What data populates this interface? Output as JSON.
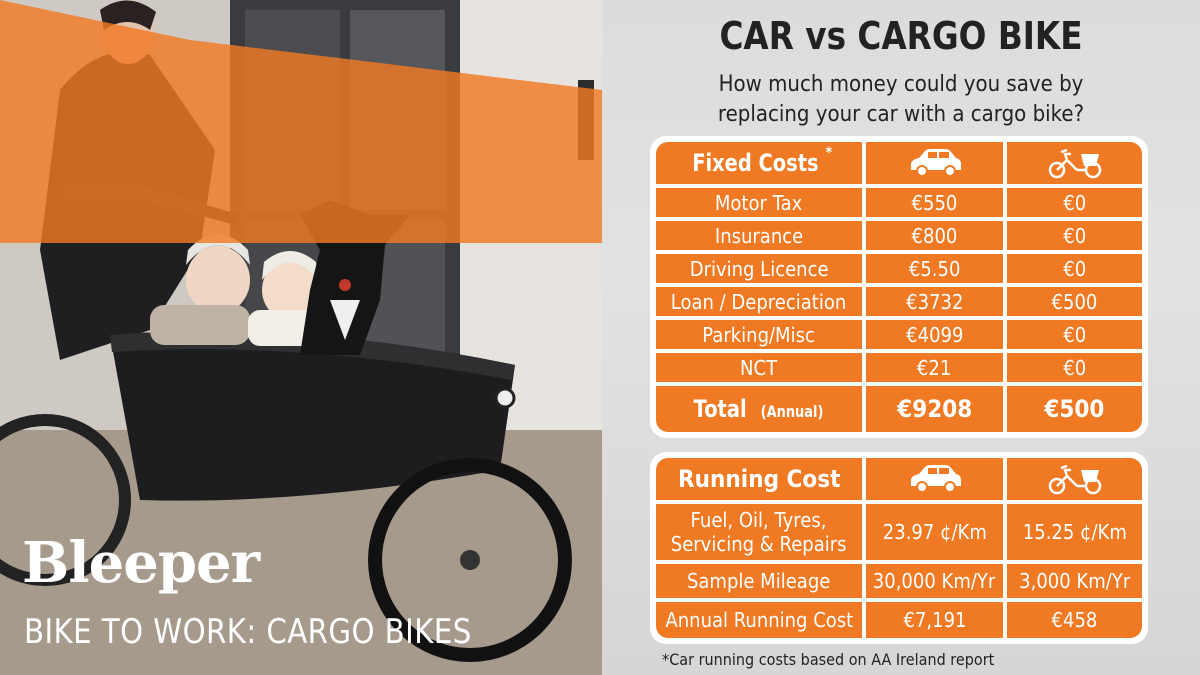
{
  "brand": {
    "name": "Bleeper",
    "tagline": "BIKE TO WORK: CARGO BIKES"
  },
  "header": {
    "title": "CAR vs CARGO BIKE",
    "subtitle_line1": "How much money could you save by",
    "subtitle_line2": "replacing your car with a cargo bike?"
  },
  "fixed_costs": {
    "header_label": "Fixed Costs",
    "header_marker": "*",
    "col_car_icon": "car-icon",
    "col_bike_icon": "cargo-bike-icon",
    "rows": [
      {
        "label": "Motor Tax",
        "car": "€550",
        "bike": "€0"
      },
      {
        "label": "Insurance",
        "car": "€800",
        "bike": "€0"
      },
      {
        "label": "Driving Licence",
        "car": "€5.50",
        "bike": "€0"
      },
      {
        "label": "Loan / Depreciation",
        "car": "€3732",
        "bike": "€500"
      },
      {
        "label": "Parking/Misc",
        "car": "€4099",
        "bike": "€0"
      },
      {
        "label": "NCT",
        "car": "€21",
        "bike": "€0"
      }
    ],
    "total": {
      "label": "Total",
      "qualifier": "(Annual)",
      "car": "€9208",
      "bike": "€500"
    }
  },
  "running_costs": {
    "header_label": "Running Cost",
    "rows": [
      {
        "label_line1": "Fuel, Oil, Tyres,",
        "label_line2": "Servicing & Repairs",
        "car": "23.97 ¢/Km",
        "bike": "15.25 ¢/Km"
      },
      {
        "label": "Sample Mileage",
        "car": "30,000 Km/Yr",
        "bike": "3,000 Km/Yr"
      },
      {
        "label": "Annual Running Cost",
        "car": "€7,191",
        "bike": "€458"
      }
    ]
  },
  "footnote": "*Car running costs based on AA Ireland report",
  "colors": {
    "accent_orange": "#f07a24",
    "table_border": "#ffffff",
    "text_dark": "#222222"
  }
}
